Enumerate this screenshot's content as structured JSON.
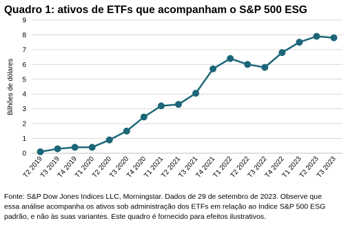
{
  "chart_data": {
    "type": "line",
    "title": "Quadro 1: ativos de ETFs que acompanham o S&P 500 ESG",
    "y_label": "Bilhões de dólares",
    "categories": [
      "T2 2019",
      "T3 2019",
      "T4 2019",
      "T1 2020",
      "T2 2020",
      "T3 2020",
      "T4 2020",
      "T1 2021",
      "T2 2021",
      "T3 2021",
      "T4 2021",
      "T1 2022",
      "T2 2022",
      "T3 2022",
      "T4 2022",
      "T1 2023",
      "T2 2023",
      "T3 2023"
    ],
    "values": [
      0.1,
      0.3,
      0.4,
      0.4,
      0.9,
      1.5,
      2.45,
      3.2,
      3.3,
      4.05,
      5.7,
      6.4,
      6.0,
      5.8,
      6.8,
      7.5,
      7.9,
      7.8
    ],
    "color": "#1c6679",
    "ylim": [
      0,
      9
    ],
    "yticks": [
      0,
      1,
      2,
      3,
      4,
      5,
      6,
      7,
      8,
      9
    ],
    "grid": true,
    "source_note": [
      "Fonte: S&P Dow Jones Indices LLC, Morningstar. Dados de 29 de setembro de 2023. Observe que",
      "essa análise acompanha os ativos sob administração dos ETFs em relação ao índice S&P 500 ESG",
      "padrão, e não às suas variantes. Este quadro é fornecido para efeitos ilustrativos."
    ]
  }
}
